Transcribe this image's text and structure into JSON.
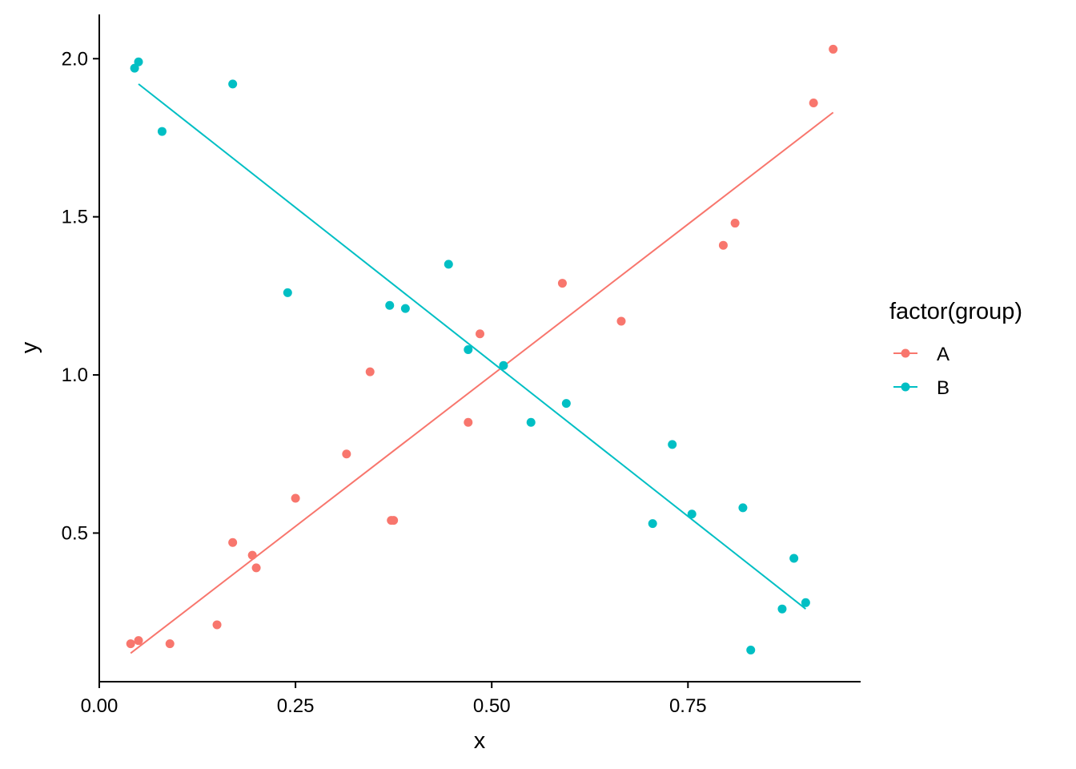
{
  "chart_data": {
    "type": "scatter",
    "title": "",
    "xlabel": "x",
    "ylabel": "y",
    "xlim": [
      0.0,
      0.97
    ],
    "ylim": [
      0.03,
      2.14
    ],
    "xticks": [
      0.0,
      0.25,
      0.5,
      0.75
    ],
    "xtick_labels": [
      "0.00",
      "0.25",
      "0.50",
      "0.75"
    ],
    "yticks": [
      0.5,
      1.0,
      1.5,
      2.0
    ],
    "ytick_labels": [
      "0.5",
      "1.0",
      "1.5",
      "2.0"
    ],
    "grid": false,
    "legend": {
      "title": "factor(group)",
      "placement": "right"
    },
    "series": [
      {
        "name": "A",
        "color": "#F8766D",
        "points": [
          [
            0.04,
            0.15
          ],
          [
            0.05,
            0.16
          ],
          [
            0.09,
            0.15
          ],
          [
            0.15,
            0.21
          ],
          [
            0.17,
            0.47
          ],
          [
            0.195,
            0.43
          ],
          [
            0.2,
            0.39
          ],
          [
            0.25,
            0.61
          ],
          [
            0.315,
            0.75
          ],
          [
            0.345,
            1.01
          ],
          [
            0.372,
            0.54
          ],
          [
            0.375,
            0.54
          ],
          [
            0.47,
            0.85
          ],
          [
            0.485,
            1.13
          ],
          [
            0.59,
            1.29
          ],
          [
            0.665,
            1.17
          ],
          [
            0.795,
            1.41
          ],
          [
            0.81,
            1.48
          ],
          [
            0.91,
            1.86
          ],
          [
            0.935,
            2.03
          ]
        ],
        "fit": [
          [
            0.04,
            0.12
          ],
          [
            0.935,
            1.83
          ]
        ]
      },
      {
        "name": "B",
        "color": "#00BFC4",
        "points": [
          [
            0.045,
            1.97
          ],
          [
            0.05,
            1.99
          ],
          [
            0.08,
            1.77
          ],
          [
            0.17,
            1.92
          ],
          [
            0.24,
            1.26
          ],
          [
            0.37,
            1.22
          ],
          [
            0.39,
            1.21
          ],
          [
            0.445,
            1.35
          ],
          [
            0.47,
            1.08
          ],
          [
            0.515,
            1.03
          ],
          [
            0.55,
            0.85
          ],
          [
            0.595,
            0.91
          ],
          [
            0.705,
            0.53
          ],
          [
            0.73,
            0.78
          ],
          [
            0.755,
            0.56
          ],
          [
            0.82,
            0.58
          ],
          [
            0.83,
            0.13
          ],
          [
            0.87,
            0.26
          ],
          [
            0.885,
            0.42
          ],
          [
            0.9,
            0.28
          ]
        ],
        "fit": [
          [
            0.05,
            1.92
          ],
          [
            0.9,
            0.26
          ]
        ]
      }
    ]
  }
}
